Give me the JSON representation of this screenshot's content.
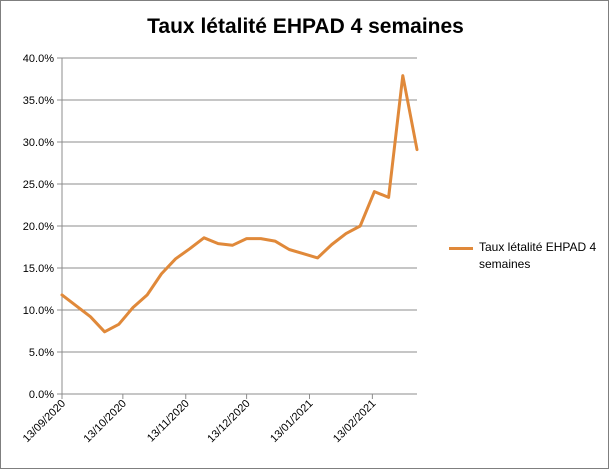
{
  "chart_data": {
    "type": "line",
    "title": "Taux létalité EHPAD 4 semaines",
    "xlabel": "",
    "ylabel": "",
    "ylim": [
      0,
      0.4
    ],
    "y_ticks": [
      {
        "value": 0.0,
        "label": "0.0%"
      },
      {
        "value": 0.05,
        "label": "5.0%"
      },
      {
        "value": 0.1,
        "label": "10.0%"
      },
      {
        "value": 0.15,
        "label": "15.0%"
      },
      {
        "value": 0.2,
        "label": "20.0%"
      },
      {
        "value": 0.25,
        "label": "25.0%"
      },
      {
        "value": 0.3,
        "label": "30.0%"
      },
      {
        "value": 0.35,
        "label": "35.0%"
      },
      {
        "value": 0.4,
        "label": "40.0%"
      }
    ],
    "x_ticks": [
      "13/09/2020",
      "13/10/2020",
      "13/11/2020",
      "13/12/2020",
      "13/01/2021",
      "13/02/2021"
    ],
    "grid": "horizontal",
    "legend_position": "right",
    "series": [
      {
        "name": "Taux létalité EHPAD 4 semaines",
        "color": "#E0893A",
        "points": [
          {
            "x": "2020-09-13",
            "y": 0.118
          },
          {
            "x": "2020-09-20",
            "y": 0.105
          },
          {
            "x": "2020-09-27",
            "y": 0.092
          },
          {
            "x": "2020-10-04",
            "y": 0.074
          },
          {
            "x": "2020-10-11",
            "y": 0.083
          },
          {
            "x": "2020-10-18",
            "y": 0.103
          },
          {
            "x": "2020-10-25",
            "y": 0.118
          },
          {
            "x": "2020-11-01",
            "y": 0.143
          },
          {
            "x": "2020-11-08",
            "y": 0.161
          },
          {
            "x": "2020-11-15",
            "y": 0.173
          },
          {
            "x": "2020-11-22",
            "y": 0.186
          },
          {
            "x": "2020-11-29",
            "y": 0.179
          },
          {
            "x": "2020-12-06",
            "y": 0.177
          },
          {
            "x": "2020-12-13",
            "y": 0.185
          },
          {
            "x": "2020-12-20",
            "y": 0.185
          },
          {
            "x": "2020-12-27",
            "y": 0.182
          },
          {
            "x": "2021-01-03",
            "y": 0.172
          },
          {
            "x": "2021-01-10",
            "y": 0.167
          },
          {
            "x": "2021-01-17",
            "y": 0.162
          },
          {
            "x": "2021-01-24",
            "y": 0.178
          },
          {
            "x": "2021-01-31",
            "y": 0.191
          },
          {
            "x": "2021-02-07",
            "y": 0.2
          },
          {
            "x": "2021-02-14",
            "y": 0.241
          },
          {
            "x": "2021-02-21",
            "y": 0.234
          },
          {
            "x": "2021-02-28",
            "y": 0.379
          },
          {
            "x": "2021-03-07",
            "y": 0.291
          }
        ]
      }
    ]
  }
}
